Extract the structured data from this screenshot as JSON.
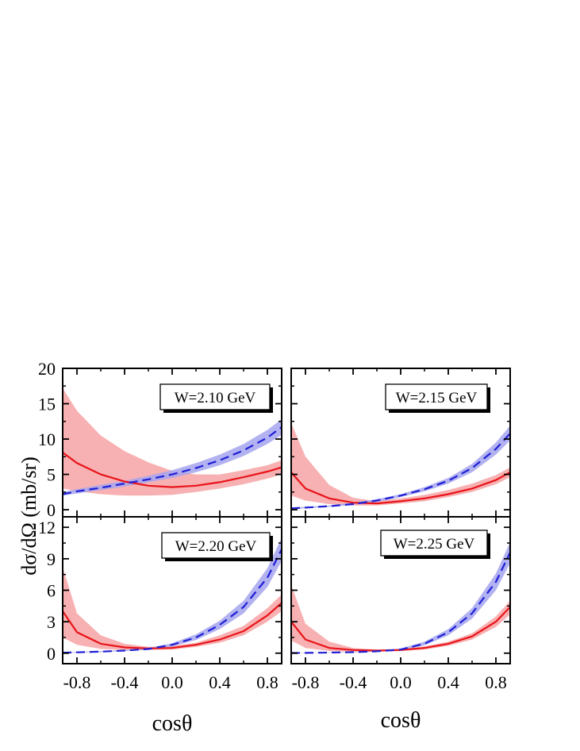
{
  "figure": {
    "ylabel": "dσ/dΩ (mb/sr)",
    "xlabel_left": "cosθ",
    "xlabel_right": "cosθ"
  },
  "colors": {
    "red_line": "#e8141a",
    "red_band": "#f7a8aa",
    "blue_line": "#1f1fd6",
    "blue_band": "#a5a5ee"
  },
  "x_ticks": [
    -0.8,
    -0.4,
    0.0,
    0.4,
    0.8
  ],
  "x_tick_labels": [
    "-0.8",
    "-0.4",
    "0.0",
    "0.4",
    "0.8"
  ],
  "chart_data": [
    {
      "type": "line",
      "panel": "top-left",
      "annotation": "W=2.10 GeV",
      "xlim": [
        -0.92,
        0.92
      ],
      "ylim": [
        -1,
        20
      ],
      "yticks": [
        0,
        5,
        10,
        15,
        20
      ],
      "ytick_labels": [
        "0",
        "5",
        "10",
        "15",
        "20"
      ],
      "x": [
        -0.92,
        -0.8,
        -0.6,
        -0.4,
        -0.2,
        0.0,
        0.2,
        0.4,
        0.6,
        0.8,
        0.92
      ],
      "series": [
        {
          "color": "red",
          "style": "solid",
          "values": [
            8.1,
            6.6,
            5.0,
            4.0,
            3.4,
            3.2,
            3.4,
            3.9,
            4.6,
            5.4,
            6.0
          ],
          "band_low": [
            3.0,
            2.6,
            2.2,
            2.0,
            2.0,
            2.1,
            2.5,
            3.0,
            3.6,
            4.4,
            5.0
          ],
          "band_high": [
            17.2,
            14.0,
            10.5,
            8.3,
            6.7,
            5.5,
            5.0,
            5.0,
            5.6,
            6.3,
            7.0
          ]
        },
        {
          "color": "blue",
          "style": "dashed",
          "values": [
            2.2,
            2.6,
            3.1,
            3.7,
            4.3,
            5.0,
            5.9,
            7.0,
            8.4,
            10.2,
            11.7
          ],
          "band_low": [
            2.0,
            2.3,
            2.8,
            3.3,
            3.9,
            4.5,
            5.3,
            6.3,
            7.6,
            9.3,
            10.6
          ],
          "band_high": [
            2.5,
            2.9,
            3.5,
            4.1,
            4.8,
            5.6,
            6.6,
            7.8,
            9.3,
            11.3,
            12.8
          ]
        }
      ]
    },
    {
      "type": "line",
      "panel": "top-right",
      "annotation": "W=2.15 GeV",
      "xlim": [
        -0.92,
        0.92
      ],
      "ylim": [
        -1,
        20
      ],
      "yticks": [
        0,
        5,
        10,
        15,
        20
      ],
      "ytick_labels": [],
      "x": [
        -0.92,
        -0.8,
        -0.6,
        -0.4,
        -0.2,
        0.0,
        0.2,
        0.4,
        0.6,
        0.8,
        0.92
      ],
      "series": [
        {
          "color": "red",
          "style": "solid",
          "values": [
            5.3,
            3.0,
            1.6,
            1.0,
            0.9,
            1.2,
            1.6,
            2.2,
            3.0,
            4.2,
            5.3
          ],
          "band_low": [
            2.0,
            1.3,
            0.8,
            0.6,
            0.6,
            0.9,
            1.2,
            1.8,
            2.5,
            3.6,
            4.6
          ],
          "band_high": [
            12.3,
            7.5,
            3.5,
            1.7,
            1.2,
            1.6,
            2.1,
            2.8,
            3.7,
            4.9,
            6.0
          ]
        },
        {
          "color": "blue",
          "style": "dashed",
          "values": [
            0.2,
            0.3,
            0.5,
            0.8,
            1.3,
            2.0,
            2.9,
            4.1,
            5.9,
            8.6,
            10.8
          ],
          "band_low": [
            0.1,
            0.2,
            0.4,
            0.7,
            1.1,
            1.8,
            2.6,
            3.7,
            5.3,
            7.8,
            9.8
          ],
          "band_high": [
            0.3,
            0.4,
            0.6,
            1.0,
            1.5,
            2.2,
            3.2,
            4.5,
            6.5,
            9.5,
            11.9
          ]
        }
      ]
    },
    {
      "type": "line",
      "panel": "bottom-left",
      "annotation": "W=2.20 GeV",
      "xlim": [
        -0.92,
        0.92
      ],
      "ylim": [
        -1,
        13
      ],
      "yticks": [
        0,
        3,
        6,
        9,
        12
      ],
      "ytick_labels": [
        "0",
        "3",
        "6",
        "9",
        "12"
      ],
      "x": [
        -0.92,
        -0.8,
        -0.6,
        -0.4,
        -0.2,
        0.0,
        0.2,
        0.4,
        0.6,
        0.8,
        0.92
      ],
      "series": [
        {
          "color": "red",
          "style": "solid",
          "values": [
            4.0,
            2.0,
            0.9,
            0.55,
            0.45,
            0.5,
            0.8,
            1.3,
            2.1,
            3.6,
            4.8
          ],
          "band_low": [
            1.5,
            0.8,
            0.4,
            0.3,
            0.3,
            0.35,
            0.6,
            1.0,
            1.7,
            3.0,
            4.0
          ],
          "band_high": [
            8.2,
            3.8,
            1.7,
            0.9,
            0.6,
            0.7,
            1.0,
            1.7,
            2.6,
            4.3,
            5.6
          ]
        },
        {
          "color": "blue",
          "style": "dashed",
          "values": [
            0.05,
            0.08,
            0.15,
            0.25,
            0.4,
            0.8,
            1.5,
            2.7,
            4.4,
            7.2,
            9.9
          ],
          "band_low": [
            0.02,
            0.05,
            0.1,
            0.2,
            0.32,
            0.65,
            1.25,
            2.3,
            3.8,
            6.3,
            8.8
          ],
          "band_high": [
            0.1,
            0.12,
            0.2,
            0.32,
            0.5,
            0.95,
            1.8,
            3.1,
            5.0,
            8.1,
            11.0
          ]
        }
      ]
    },
    {
      "type": "line",
      "panel": "bottom-right",
      "annotation": "W=2.25 GeV",
      "xlim": [
        -0.92,
        0.92
      ],
      "ylim": [
        -1,
        13
      ],
      "yticks": [
        0,
        3,
        6,
        9,
        12
      ],
      "ytick_labels": [],
      "x": [
        -0.92,
        -0.8,
        -0.6,
        -0.4,
        -0.2,
        0.0,
        0.2,
        0.4,
        0.6,
        0.8,
        0.92
      ],
      "series": [
        {
          "color": "red",
          "style": "solid",
          "values": [
            3.0,
            1.3,
            0.5,
            0.3,
            0.25,
            0.3,
            0.5,
            0.9,
            1.6,
            3.0,
            4.4
          ],
          "band_low": [
            1.2,
            0.5,
            0.2,
            0.15,
            0.15,
            0.2,
            0.35,
            0.7,
            1.3,
            2.5,
            3.7
          ],
          "band_high": [
            6.5,
            2.8,
            1.1,
            0.5,
            0.35,
            0.4,
            0.65,
            1.1,
            1.9,
            3.5,
            5.0
          ]
        },
        {
          "color": "blue",
          "style": "dashed",
          "values": [
            0.02,
            0.03,
            0.06,
            0.1,
            0.18,
            0.35,
            0.9,
            2.0,
            3.8,
            6.8,
            9.6
          ],
          "band_low": [
            0.01,
            0.02,
            0.04,
            0.07,
            0.13,
            0.28,
            0.75,
            1.7,
            3.3,
            6.0,
            8.6
          ],
          "band_high": [
            0.04,
            0.05,
            0.08,
            0.13,
            0.22,
            0.45,
            1.1,
            2.3,
            4.3,
            7.6,
            10.6
          ]
        }
      ]
    }
  ]
}
